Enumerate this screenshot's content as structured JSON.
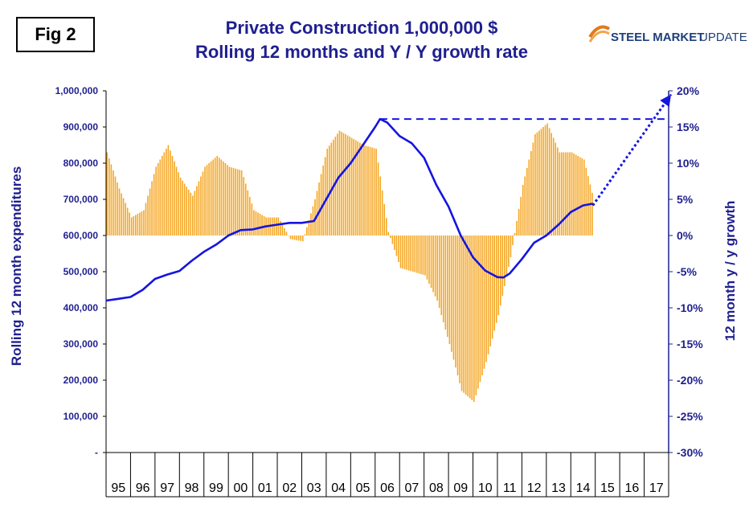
{
  "figure_label": "Fig 2",
  "logo": {
    "brand_bold": "STEEL MARKET",
    "brand_light": "UPDATE",
    "icon": "steel-market-update-logo-icon"
  },
  "colors": {
    "title": "#1f1f8f",
    "line": "#1515e0",
    "bars": "#f5a623",
    "axis": "#1f1f8f"
  },
  "chart_data": {
    "type": "bar+line",
    "title": "Private Construction 1,000,000 $",
    "subtitle": "Rolling 12 months and Y / Y growth rate",
    "ylabel_left": "Rolling 12 month expenditures",
    "ylabel_right": "12 month y / y growth",
    "ylim_left": [
      0,
      1000000
    ],
    "ylim_right": [
      -30,
      20
    ],
    "left_ticks": [
      "1,000,000",
      "900,000",
      "800,000",
      "700,000",
      "600,000",
      "500,000",
      "400,000",
      "300,000",
      "200,000",
      "100,000",
      "-"
    ],
    "right_ticks": [
      "20%",
      "15%",
      "10%",
      "5%",
      "0%",
      "-5%",
      "-10%",
      "-15%",
      "-20%",
      "-25%",
      "-30%"
    ],
    "x_categories": [
      "95",
      "96",
      "97",
      "98",
      "99",
      "00",
      "01",
      "02",
      "03",
      "04",
      "05",
      "06",
      "07",
      "08",
      "09",
      "10",
      "11",
      "12",
      "13",
      "14",
      "15",
      "16",
      "17"
    ],
    "series": [
      {
        "name": "12 month y/y growth (%)",
        "type": "bar",
        "axis": "right",
        "x": [
          1995.0,
          1995.5,
          1996.0,
          1996.5,
          1997.0,
          1997.5,
          1998.0,
          1998.5,
          1999.0,
          1999.5,
          2000.0,
          2000.5,
          2001.0,
          2001.5,
          2002.0,
          2002.5,
          2003.0,
          2003.5,
          2004.0,
          2004.5,
          2005.0,
          2005.5,
          2006.0,
          2006.5,
          2007.0,
          2007.5,
          2008.0,
          2008.5,
          2009.0,
          2009.5,
          2010.0,
          2010.5,
          2011.0,
          2011.5,
          2012.0,
          2012.5,
          2013.0,
          2013.5,
          2014.0,
          2014.5,
          2014.9
        ],
        "values": [
          11.5,
          6.5,
          2.5,
          3.5,
          9.5,
          12.5,
          8.0,
          5.5,
          9.5,
          11.0,
          9.5,
          9.0,
          3.5,
          2.5,
          2.5,
          -0.5,
          -0.8,
          5.0,
          12.0,
          14.5,
          13.5,
          12.5,
          12.0,
          0.5,
          -4.5,
          -5.0,
          -5.5,
          -9.0,
          -15.0,
          -21.5,
          -23.0,
          -17.5,
          -11.0,
          -3.0,
          7.0,
          14.0,
          15.5,
          11.5,
          11.5,
          10.5,
          5.0
        ]
      },
      {
        "name": "Rolling 12 month expenditures ($M)",
        "type": "line",
        "axis": "left",
        "x": [
          1995.0,
          1995.5,
          1996.0,
          1996.5,
          1997.0,
          1997.5,
          1998.0,
          1998.5,
          1999.0,
          1999.5,
          2000.0,
          2000.5,
          2001.0,
          2001.5,
          2002.0,
          2002.5,
          2003.0,
          2003.5,
          2004.0,
          2004.5,
          2005.0,
          2005.5,
          2006.0,
          2006.2,
          2006.5,
          2007.0,
          2007.5,
          2008.0,
          2008.5,
          2009.0,
          2009.5,
          2010.0,
          2010.5,
          2011.0,
          2011.25,
          2011.5,
          2012.0,
          2012.5,
          2013.0,
          2013.5,
          2014.0,
          2014.5,
          2014.9
        ],
        "values": [
          420000,
          425000,
          430000,
          450000,
          480000,
          492000,
          502000,
          530000,
          555000,
          575000,
          600000,
          615000,
          617000,
          625000,
          630000,
          635000,
          635000,
          640000,
          700000,
          760000,
          800000,
          850000,
          900000,
          922000,
          912000,
          875000,
          855000,
          815000,
          740000,
          680000,
          600000,
          540000,
          503000,
          485000,
          484000,
          495000,
          535000,
          580000,
          600000,
          630000,
          665000,
          683000,
          688000
        ]
      }
    ],
    "annotations": [
      {
        "type": "dashed-horizontal",
        "y": 922000,
        "axis": "left",
        "x_start": 2006.2,
        "x_end": 2017.9
      },
      {
        "type": "dotted-arrow",
        "from": [
          2014.9,
          683000
        ],
        "to": [
          2018.1,
          990000
        ],
        "axis": "left"
      }
    ]
  }
}
